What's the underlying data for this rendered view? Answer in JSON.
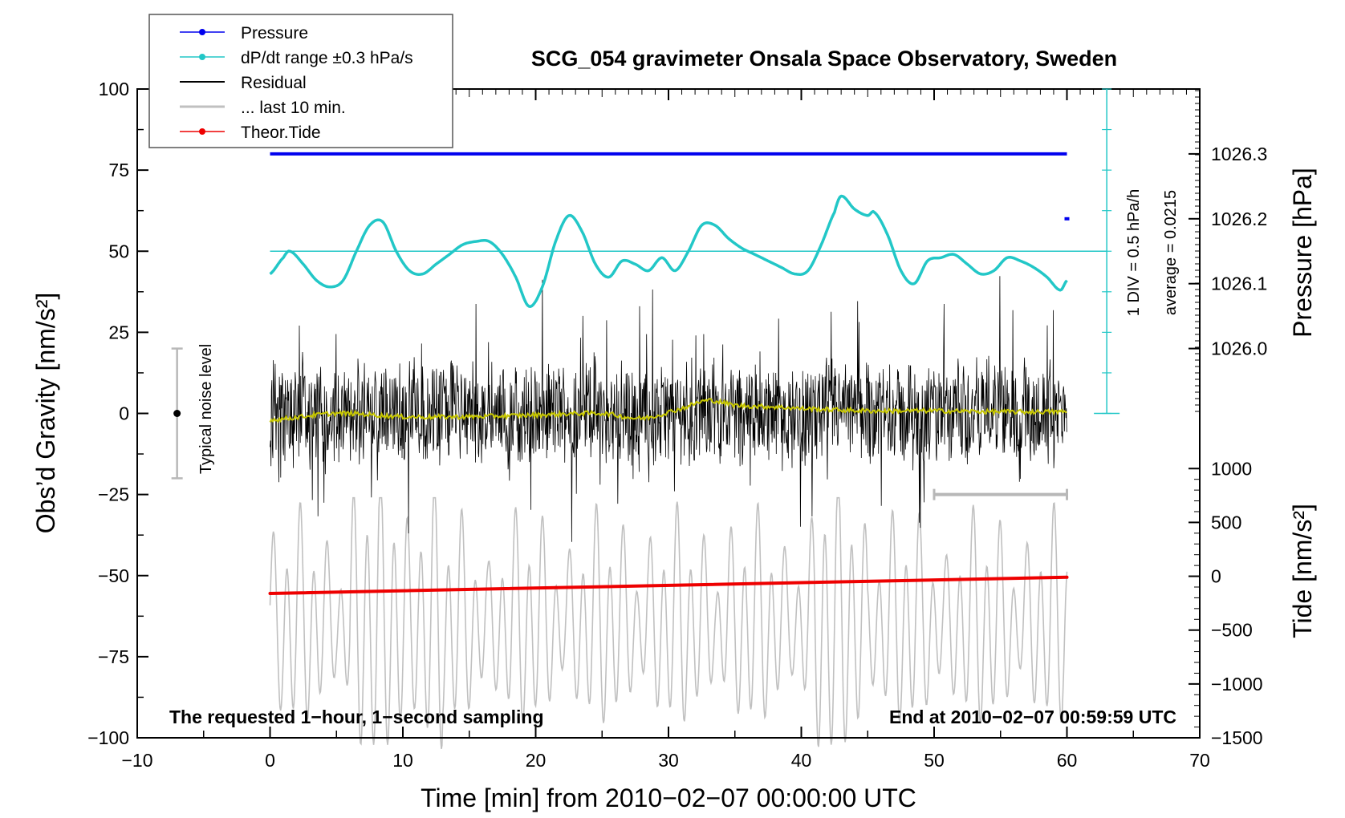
{
  "chart_data": {
    "type": "line",
    "title": "SCG_054 gravimeter Onsala Space Observatory, Sweden",
    "xlabel": "Time [min] from 2010−02−07 00:00:00 UTC",
    "ylabel_left": "Obs’d Gravity [nm/s²]",
    "ylabel_right_top": "Pressure [hPa]",
    "ylabel_right_bottom": "Tide [nm/s²]",
    "xlim": [
      -10,
      70
    ],
    "ylim_left": [
      -100,
      100
    ],
    "xticks": [
      {
        "value": -10,
        "label": "−10"
      },
      {
        "value": 0,
        "label": "0"
      },
      {
        "value": 10,
        "label": "10"
      },
      {
        "value": 20,
        "label": "20"
      },
      {
        "value": 30,
        "label": "30"
      },
      {
        "value": 40,
        "label": "40"
      },
      {
        "value": 50,
        "label": "50"
      },
      {
        "value": 60,
        "label": "60"
      },
      {
        "value": 70,
        "label": "70"
      }
    ],
    "yticks_left": [
      {
        "value": 100,
        "label": "100"
      },
      {
        "value": 75,
        "label": "75"
      },
      {
        "value": 50,
        "label": "50"
      },
      {
        "value": 25,
        "label": "25"
      },
      {
        "value": 0,
        "label": "0"
      },
      {
        "value": -25,
        "label": "−25"
      },
      {
        "value": -50,
        "label": "−50"
      },
      {
        "value": -75,
        "label": "−75"
      },
      {
        "value": -100,
        "label": "−100"
      }
    ],
    "pressure_axis": {
      "ticks": [
        {
          "value": 1026.3,
          "label": "1026.3"
        },
        {
          "value": 1026.2,
          "label": "1026.2"
        },
        {
          "value": 1026.1,
          "label": "1026.1"
        },
        {
          "value": 1026.0,
          "label": "1026.0"
        }
      ],
      "gravity_equivalent": [
        [
          1026.3,
          80
        ],
        [
          1026.0,
          20
        ]
      ]
    },
    "tide_axis": {
      "ticks": [
        {
          "value": 1000,
          "label": "1000"
        },
        {
          "value": 500,
          "label": "500"
        },
        {
          "value": 0,
          "label": "0"
        },
        {
          "value": -500,
          "label": "−500"
        },
        {
          "value": -1000,
          "label": "−1000"
        },
        {
          "value": -1500,
          "label": "−1500"
        }
      ],
      "gravity_equivalent": [
        [
          1000,
          -17
        ],
        [
          -1500,
          -100
        ]
      ]
    },
    "legend": [
      {
        "label": "Pressure",
        "color": "#0000ee",
        "marker": true
      },
      {
        "label": "dP/dt range ±0.3 hPa/s",
        "color": "#22c7c7",
        "marker": true
      },
      {
        "label": "Residual",
        "color": "#000000",
        "marker": false
      },
      {
        "label": "... last 10 min.",
        "color": "#c0c0c0",
        "marker": false
      },
      {
        "label": "Theor.Tide",
        "color": "#ee0000",
        "marker": true
      }
    ],
    "series": [
      {
        "name": "Pressure",
        "color": "#0000ee",
        "x": [
          0,
          60
        ],
        "y": [
          80,
          80
        ],
        "pressure_hpa": 1026.3,
        "last_point": {
          "x": 60,
          "y": 60
        }
      },
      {
        "name": "dP/dt range ±0.3 hPa/s",
        "color": "#22c7c7",
        "x": [
          0,
          1,
          1.5,
          2.5,
          3.5,
          4.5,
          5.5,
          6.5,
          7.5,
          8.5,
          9.5,
          10.5,
          11.5,
          12.5,
          13.5,
          14.5,
          15.5,
          16.5,
          17.5,
          18.5,
          19.5,
          20.5,
          21.5,
          22.5,
          23.5,
          24.5,
          25.5,
          26.5,
          27.5,
          28.5,
          29.5,
          30.5,
          31.5,
          32.5,
          33.5,
          34.5,
          35.5,
          36.5,
          37.5,
          38.5,
          39.5,
          40.5,
          41.5,
          42.5,
          43,
          44,
          45,
          45.5,
          46.5,
          47.5,
          48.5,
          49.5,
          50.5,
          51.5,
          52.5,
          53.5,
          54.5,
          55.5,
          56.5,
          57.5,
          58.5,
          59.5,
          60
        ],
        "y": [
          43,
          48,
          50,
          46,
          41,
          39,
          41,
          50,
          58,
          59,
          50,
          44,
          43,
          46,
          49,
          52,
          53,
          53,
          49,
          42,
          33,
          39,
          53,
          61,
          56,
          46,
          42,
          47,
          46,
          44,
          48,
          44,
          50,
          58,
          58,
          54,
          51,
          49,
          47,
          45,
          43,
          44,
          52,
          62,
          67,
          63,
          61,
          62,
          55,
          44,
          40,
          47,
          48,
          49,
          46,
          43,
          44,
          48,
          47,
          45,
          42,
          38,
          41
        ]
      },
      {
        "name": "Residual",
        "color": "#000000",
        "x_range": [
          0,
          60
        ],
        "typical_range": [
          -22,
          22
        ],
        "spike_range": [
          -40,
          48
        ]
      },
      {
        "name": "Residual running mean",
        "color": "#c8c800",
        "x": [
          0,
          5,
          10,
          15,
          20,
          25,
          28,
          31,
          33,
          35,
          38,
          40,
          45,
          50,
          55,
          60
        ],
        "y": [
          -2,
          0,
          -1,
          -1,
          -0.5,
          0,
          -1.5,
          1.5,
          4,
          2.5,
          2,
          1.5,
          0.8,
          0.8,
          0.5,
          0.5
        ]
      },
      {
        "name": "... last 10 min.",
        "color": "#c0c0c0",
        "x_range": [
          0,
          60
        ],
        "y_range": [
          -105,
          -25
        ],
        "window": [
          50,
          60
        ]
      },
      {
        "name": "Theor.Tide",
        "color": "#ee0000",
        "x": [
          0,
          60
        ],
        "y": [
          -55.5,
          -50.5
        ]
      }
    ],
    "annotations": {
      "noise_label": "Typical noise level",
      "noise_bar": {
        "x": -7,
        "y": 0,
        "range": [
          -20,
          20
        ]
      },
      "div_label": "1 DIV = 0.5 hPa/h",
      "average_label": "average = 0.0215",
      "left_note": "The requested 1−hour, 1−second sampling",
      "right_note": "End at 2010−02−07 00:59:59 UTC"
    }
  }
}
